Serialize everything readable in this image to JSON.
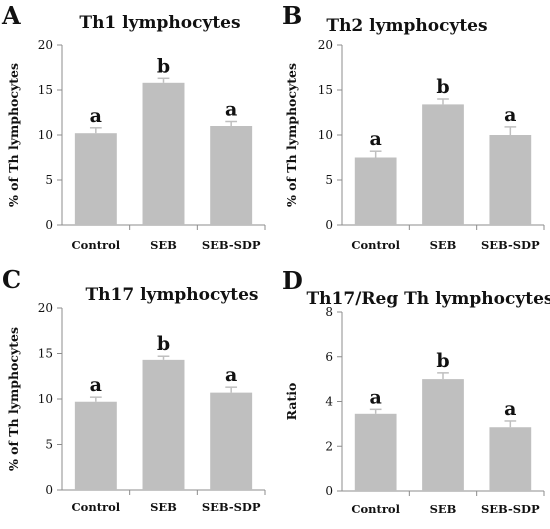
{
  "chart_data": [
    {
      "panel": "A",
      "type": "bar",
      "title": "Th1 lymphocytes",
      "ylabel": "% of Th lymphocytes",
      "ylim": [
        0,
        20
      ],
      "yticks": [
        0,
        5,
        10,
        15,
        20
      ],
      "categories": [
        "Control",
        "SEB",
        "SEB-SDP"
      ],
      "values": [
        10.2,
        15.8,
        11.0
      ],
      "errors": [
        0.6,
        0.5,
        0.5
      ],
      "significance": [
        "a",
        "b",
        "a"
      ]
    },
    {
      "panel": "B",
      "type": "bar",
      "title": "Th2 lymphocytes",
      "ylabel": "% of Th lymphocytes",
      "ylim": [
        0,
        20
      ],
      "yticks": [
        0,
        5,
        10,
        15,
        20
      ],
      "categories": [
        "Control",
        "SEB",
        "SEB-SDP"
      ],
      "values": [
        7.5,
        13.4,
        10.0
      ],
      "errors": [
        0.7,
        0.6,
        0.9
      ],
      "significance": [
        "a",
        "b",
        "a"
      ]
    },
    {
      "panel": "C",
      "type": "bar",
      "title": "Th17 lymphocytes",
      "ylabel": "% of Th lymphocytes",
      "ylim": [
        0,
        20
      ],
      "yticks": [
        0,
        5,
        10,
        15,
        20
      ],
      "categories": [
        "Control",
        "SEB",
        "SEB-SDP"
      ],
      "values": [
        9.7,
        14.3,
        10.7
      ],
      "errors": [
        0.5,
        0.4,
        0.6
      ],
      "significance": [
        "a",
        "b",
        "a"
      ]
    },
    {
      "panel": "D",
      "type": "bar",
      "title": "Th17/Reg Th lymphocytes",
      "ylabel": "Ratio",
      "ylim": [
        0,
        8
      ],
      "yticks": [
        0,
        2,
        4,
        6,
        8
      ],
      "categories": [
        "Control",
        "SEB",
        "SEB-SDP"
      ],
      "values": [
        3.45,
        5.0,
        2.85
      ],
      "errors": [
        0.2,
        0.28,
        0.28
      ],
      "significance": [
        "a",
        "b",
        "a"
      ]
    }
  ],
  "colors": {
    "bar": "#bfbfbf",
    "axis": "#8c8c8c",
    "text": "#111111"
  }
}
